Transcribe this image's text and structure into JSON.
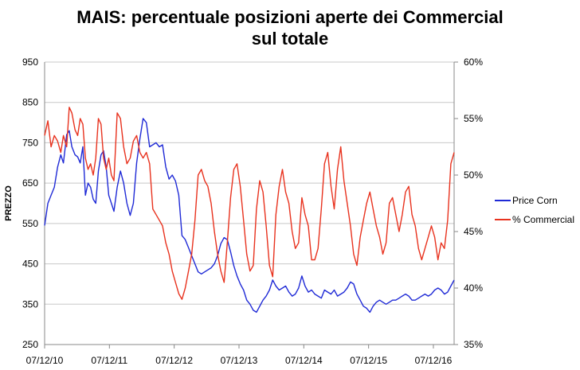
{
  "chart_data": {
    "type": "line",
    "title_lines": [
      "MAIS: percentuale posizioni aperte dei Commercial",
      "sul totale"
    ],
    "ylabel": "PREZZO",
    "y_ticks": [
      "950",
      "850",
      "750",
      "650",
      "550",
      "450",
      "350",
      "250"
    ],
    "y2_ticks": [
      "60%",
      "55%",
      "50%",
      "45%",
      "40%",
      "35%"
    ],
    "x_ticks": [
      "07/12/10",
      "07/12/11",
      "07/12/12",
      "07/12/13",
      "07/12/14",
      "07/12/15",
      "07/12/16"
    ],
    "ylim": [
      250,
      950
    ],
    "y2lim": [
      35,
      60
    ],
    "xlim": [
      2010.93,
      2017.25
    ],
    "grid": "horizontal",
    "legend_position": "right",
    "series": [
      {
        "name": "Price Corn",
        "axis": "left",
        "color": "#1f2ad6",
        "x": [
          2010.93,
          2010.98,
          2011.03,
          2011.08,
          2011.13,
          2011.18,
          2011.22,
          2011.27,
          2011.31,
          2011.35,
          2011.4,
          2011.44,
          2011.48,
          2011.52,
          2011.56,
          2011.6,
          2011.64,
          2011.68,
          2011.72,
          2011.76,
          2011.8,
          2011.84,
          2011.88,
          2011.92,
          2011.96,
          2012.0,
          2012.05,
          2012.1,
          2012.15,
          2012.2,
          2012.25,
          2012.3,
          2012.35,
          2012.4,
          2012.45,
          2012.5,
          2012.55,
          2012.6,
          2012.65,
          2012.7,
          2012.75,
          2012.8,
          2012.85,
          2012.9,
          2012.95,
          2013.0,
          2013.05,
          2013.1,
          2013.15,
          2013.2,
          2013.25,
          2013.3,
          2013.35,
          2013.4,
          2013.45,
          2013.5,
          2013.55,
          2013.6,
          2013.65,
          2013.7,
          2013.75,
          2013.8,
          2013.85,
          2013.9,
          2013.95,
          2014.0,
          2014.05,
          2014.1,
          2014.15,
          2014.2,
          2014.25,
          2014.3,
          2014.35,
          2014.4,
          2014.45,
          2014.5,
          2014.55,
          2014.6,
          2014.65,
          2014.7,
          2014.75,
          2014.8,
          2014.85,
          2014.9,
          2014.95,
          2015.0,
          2015.05,
          2015.1,
          2015.15,
          2015.2,
          2015.25,
          2015.3,
          2015.35,
          2015.4,
          2015.45,
          2015.5,
          2015.55,
          2015.6,
          2015.65,
          2015.7,
          2015.75,
          2015.8,
          2015.85,
          2015.9,
          2015.95,
          2016.0,
          2016.05,
          2016.1,
          2016.15,
          2016.2,
          2016.25,
          2016.3,
          2016.35,
          2016.4,
          2016.45,
          2016.5,
          2016.55,
          2016.6,
          2016.65,
          2016.7,
          2016.75,
          2016.8,
          2016.85,
          2016.9,
          2016.95,
          2017.0,
          2017.05,
          2017.1,
          2017.15,
          2017.2,
          2017.25
        ],
        "values": [
          545,
          600,
          620,
          640,
          690,
          720,
          700,
          770,
          780,
          740,
          720,
          715,
          700,
          740,
          620,
          650,
          640,
          610,
          600,
          680,
          720,
          730,
          690,
          620,
          600,
          580,
          640,
          680,
          650,
          600,
          570,
          600,
          700,
          760,
          810,
          800,
          740,
          745,
          750,
          740,
          745,
          690,
          660,
          670,
          655,
          620,
          520,
          510,
          490,
          470,
          450,
          430,
          425,
          430,
          435,
          440,
          450,
          470,
          500,
          515,
          510,
          480,
          445,
          420,
          400,
          385,
          360,
          350,
          335,
          330,
          345,
          360,
          370,
          385,
          410,
          395,
          385,
          390,
          395,
          380,
          370,
          375,
          390,
          420,
          395,
          380,
          385,
          375,
          370,
          365,
          385,
          380,
          375,
          385,
          370,
          375,
          380,
          390,
          405,
          400,
          375,
          360,
          345,
          340,
          330,
          345,
          355,
          360,
          355,
          350,
          355,
          360,
          360,
          365,
          370,
          375,
          370,
          360,
          360,
          365,
          370,
          375,
          370,
          375,
          385,
          390,
          385,
          375,
          380,
          395,
          410
        ]
      },
      {
        "name": "% Commercial",
        "axis": "right",
        "color": "#e8321e",
        "x": [
          2010.93,
          2010.98,
          2011.03,
          2011.08,
          2011.13,
          2011.18,
          2011.22,
          2011.27,
          2011.31,
          2011.35,
          2011.4,
          2011.44,
          2011.48,
          2011.52,
          2011.56,
          2011.6,
          2011.64,
          2011.68,
          2011.72,
          2011.76,
          2011.8,
          2011.84,
          2011.88,
          2011.92,
          2011.96,
          2012.0,
          2012.05,
          2012.1,
          2012.15,
          2012.2,
          2012.25,
          2012.3,
          2012.35,
          2012.4,
          2012.45,
          2012.5,
          2012.55,
          2012.6,
          2012.65,
          2012.7,
          2012.75,
          2012.8,
          2012.85,
          2012.9,
          2012.95,
          2013.0,
          2013.05,
          2013.1,
          2013.15,
          2013.2,
          2013.25,
          2013.3,
          2013.35,
          2013.4,
          2013.45,
          2013.5,
          2013.55,
          2013.6,
          2013.65,
          2013.7,
          2013.75,
          2013.8,
          2013.85,
          2013.9,
          2013.95,
          2014.0,
          2014.05,
          2014.1,
          2014.15,
          2014.2,
          2014.25,
          2014.3,
          2014.35,
          2014.4,
          2014.45,
          2014.5,
          2014.55,
          2014.6,
          2014.65,
          2014.7,
          2014.75,
          2014.8,
          2014.85,
          2014.9,
          2014.95,
          2015.0,
          2015.05,
          2015.1,
          2015.15,
          2015.2,
          2015.25,
          2015.3,
          2015.35,
          2015.4,
          2015.45,
          2015.5,
          2015.55,
          2015.6,
          2015.65,
          2015.7,
          2015.75,
          2015.8,
          2015.85,
          2015.9,
          2015.95,
          2016.0,
          2016.05,
          2016.1,
          2016.15,
          2016.2,
          2016.25,
          2016.3,
          2016.35,
          2016.4,
          2016.45,
          2016.5,
          2016.55,
          2016.6,
          2016.65,
          2016.7,
          2016.75,
          2016.8,
          2016.85,
          2016.9,
          2016.95,
          2017.0,
          2017.05,
          2017.1,
          2017.15,
          2017.2,
          2017.25
        ],
        "values": [
          53.5,
          54.8,
          52.5,
          53.5,
          53.0,
          52.0,
          53.5,
          52.5,
          56.0,
          55.5,
          54.0,
          53.5,
          55.0,
          54.5,
          51.5,
          50.5,
          51.0,
          50.0,
          51.5,
          55.0,
          54.5,
          51.5,
          50.5,
          51.5,
          50.0,
          49.5,
          55.5,
          55.0,
          52.5,
          51.0,
          51.5,
          53.0,
          53.5,
          52.0,
          51.5,
          52.0,
          51.0,
          47.0,
          46.5,
          46.0,
          45.5,
          44.0,
          43.0,
          41.5,
          40.5,
          39.5,
          39.0,
          40.0,
          41.5,
          43.0,
          46.0,
          50.0,
          50.5,
          49.5,
          49.0,
          47.5,
          45.0,
          43.0,
          41.5,
          40.5,
          44.0,
          48.0,
          50.5,
          51.0,
          49.0,
          46.0,
          43.0,
          41.5,
          42.0,
          47.0,
          49.5,
          48.5,
          45.5,
          42.0,
          41.0,
          46.5,
          49.0,
          50.5,
          48.5,
          47.5,
          45.0,
          43.5,
          44.0,
          48.0,
          46.5,
          45.5,
          42.5,
          42.5,
          43.5,
          47.0,
          51.0,
          52.0,
          49.0,
          47.0,
          50.5,
          52.5,
          49.5,
          47.5,
          45.5,
          43.0,
          42.0,
          44.5,
          46.0,
          47.5,
          48.5,
          47.0,
          45.5,
          44.5,
          43.0,
          44.0,
          47.5,
          48.0,
          46.5,
          45.0,
          46.5,
          48.5,
          49.0,
          46.5,
          45.5,
          43.5,
          42.5,
          43.5,
          44.5,
          45.5,
          44.5,
          42.5,
          44.0,
          43.5,
          46.0,
          51.0,
          52.0
        ]
      }
    ]
  }
}
